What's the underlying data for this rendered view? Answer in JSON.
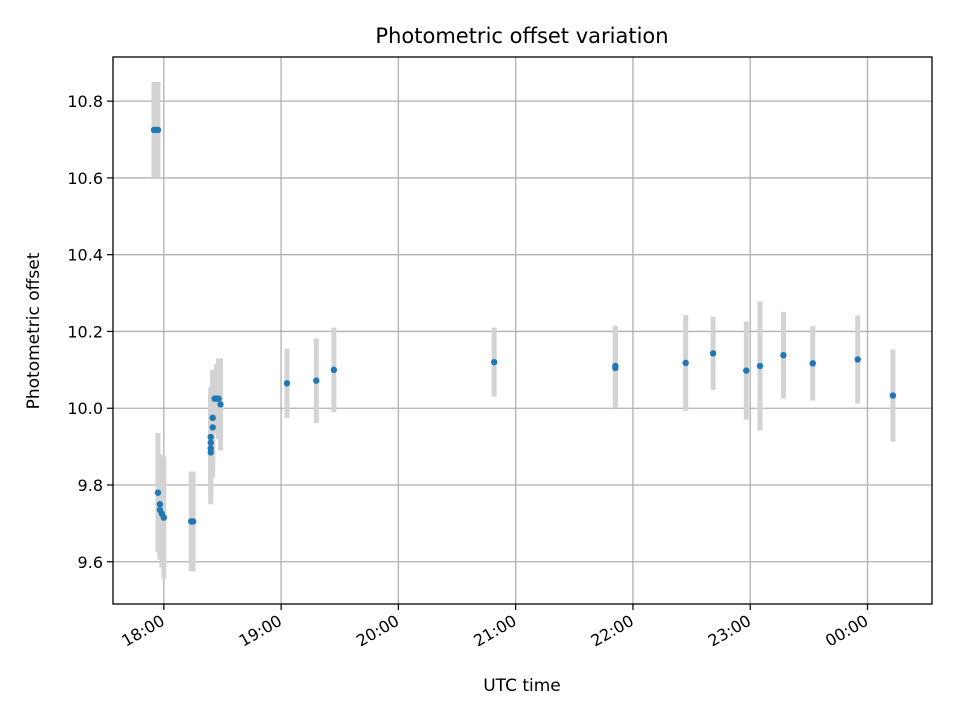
{
  "chart_data": {
    "type": "scatter",
    "title": "Photometric offset variation",
    "xlabel": "UTC time",
    "ylabel": "Photometric offset",
    "grid": true,
    "xlim": [
      "17:34",
      "00:33"
    ],
    "ylim": [
      9.49,
      10.915
    ],
    "x_ticks": [
      "18:00",
      "19:00",
      "20:00",
      "21:00",
      "22:00",
      "23:00",
      "00:00"
    ],
    "y_ticks": [
      9.6,
      9.8,
      10.0,
      10.2,
      10.4,
      10.6,
      10.8
    ],
    "colors": {
      "point": "#1f77b4",
      "error_bar": "#d3d3d3",
      "grid": "#b0b0b0"
    },
    "series": [
      {
        "points": [
          {
            "x": "17:55",
            "y": 10.725,
            "err": 0.125
          },
          {
            "x": "17:56",
            "y": 10.725,
            "err": 0.125
          },
          {
            "x": "17:57",
            "y": 10.725,
            "err": 0.125
          },
          {
            "x": "17:57",
            "y": 9.78,
            "err": 0.155
          },
          {
            "x": "17:58",
            "y": 9.75,
            "err": 0.13
          },
          {
            "x": "17:58",
            "y": 9.735,
            "err": 0.13
          },
          {
            "x": "17:59",
            "y": 9.725,
            "err": 0.14
          },
          {
            "x": "18:00",
            "y": 9.715,
            "err": 0.16
          },
          {
            "x": "18:14",
            "y": 9.705,
            "err": 0.13
          },
          {
            "x": "18:15",
            "y": 9.705,
            "err": 0.13
          },
          {
            "x": "18:24",
            "y": 9.885,
            "err": 0.135
          },
          {
            "x": "18:24",
            "y": 9.895,
            "err": 0.13
          },
          {
            "x": "18:24",
            "y": 9.91,
            "err": 0.13
          },
          {
            "x": "18:24",
            "y": 9.925,
            "err": 0.13
          },
          {
            "x": "18:25",
            "y": 9.95,
            "err": 0.13
          },
          {
            "x": "18:25",
            "y": 9.975,
            "err": 0.125
          },
          {
            "x": "18:26",
            "y": 10.025,
            "err": 0.075
          },
          {
            "x": "18:27",
            "y": 10.025,
            "err": 0.09
          },
          {
            "x": "18:28",
            "y": 10.025,
            "err": 0.105
          },
          {
            "x": "18:29",
            "y": 10.01,
            "err": 0.12
          },
          {
            "x": "19:03",
            "y": 10.065,
            "err": 0.09
          },
          {
            "x": "19:18",
            "y": 10.072,
            "err": 0.11
          },
          {
            "x": "19:27",
            "y": 10.1,
            "err": 0.11
          },
          {
            "x": "20:49",
            "y": 10.12,
            "err": 0.09
          },
          {
            "x": "21:51",
            "y": 10.11,
            "err": 0.105
          },
          {
            "x": "21:51",
            "y": 10.105,
            "err": 0.105
          },
          {
            "x": "22:27",
            "y": 10.118,
            "err": 0.125
          },
          {
            "x": "22:41",
            "y": 10.143,
            "err": 0.095
          },
          {
            "x": "22:58",
            "y": 10.098,
            "err": 0.128
          },
          {
            "x": "23:05",
            "y": 10.11,
            "err": 0.168
          },
          {
            "x": "23:17",
            "y": 10.138,
            "err": 0.113
          },
          {
            "x": "23:32",
            "y": 10.117,
            "err": 0.097
          },
          {
            "x": "23:55",
            "y": 10.127,
            "err": 0.115
          },
          {
            "x": "00:13",
            "y": 10.033,
            "err": 0.12
          }
        ]
      }
    ]
  }
}
